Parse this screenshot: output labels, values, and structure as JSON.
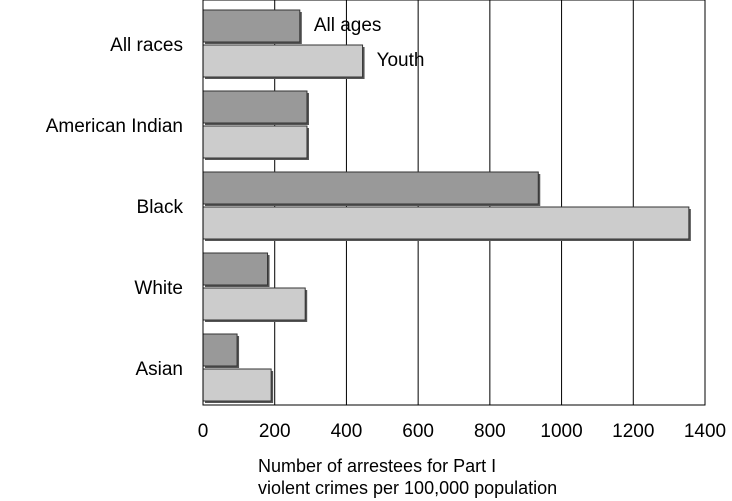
{
  "chart_data": {
    "type": "bar",
    "orientation": "horizontal",
    "categories": [
      "All races",
      "American Indian",
      "Black",
      "White",
      "Asian"
    ],
    "series": [
      {
        "name": "All ages",
        "values": [
          270,
          290,
          935,
          180,
          95
        ]
      },
      {
        "name": "Youth",
        "values": [
          445,
          290,
          1355,
          285,
          190
        ]
      }
    ],
    "xlim": [
      0,
      1400
    ],
    "xticks": [
      "0",
      "200",
      "400",
      "600",
      "800",
      "1000",
      "1200",
      "1400"
    ],
    "xlabel_lines": [
      "Number of arrestees for Part I",
      "violent crimes per 100,000 population"
    ],
    "legend_placement": "inline next to first category bars",
    "grid": "vertical",
    "colors": {
      "all_ages": "#999999",
      "youth": "#cccccc",
      "shadow": "#555555"
    }
  }
}
